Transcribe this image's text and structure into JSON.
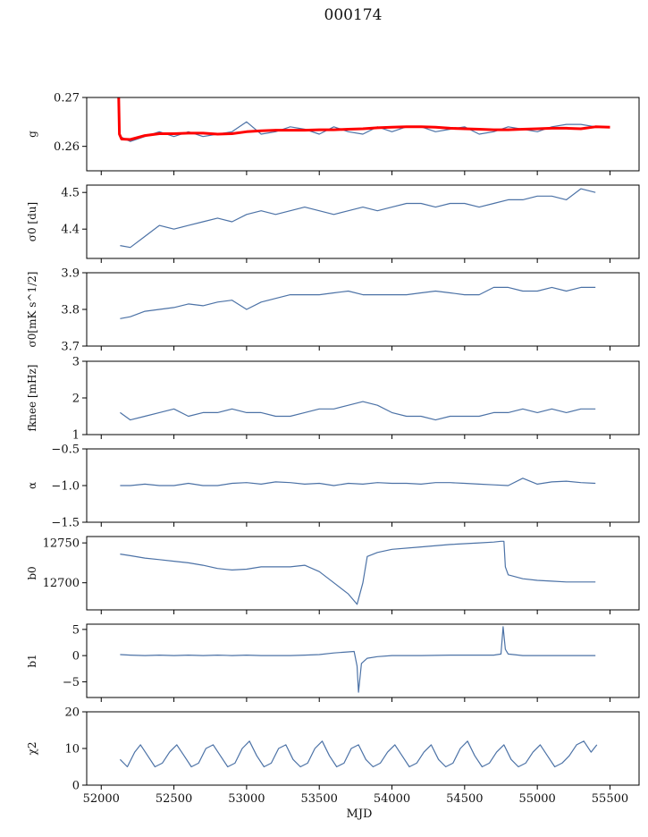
{
  "title": "000174",
  "colors": {
    "series": "#4C72A6",
    "fit": "#FF0000",
    "axis": "#000000"
  },
  "chart_data": [
    {
      "type": "line",
      "ylabel": "g",
      "ylim": [
        0.255,
        0.27
      ],
      "yticks": [
        0.26,
        0.27
      ],
      "ytick_labels": [
        "0.26",
        "0.27"
      ],
      "series": [
        {
          "x": [
            52130,
            52200,
            52300,
            52400,
            52500,
            52600,
            52700,
            52800,
            52900,
            53000,
            53100,
            53200,
            53300,
            53400,
            53500,
            53600,
            53700,
            53800,
            53900,
            54000,
            54100,
            54200,
            54300,
            54400,
            54500,
            54600,
            54700,
            54800,
            54900,
            55000,
            55100,
            55200,
            55300,
            55400
          ],
          "values": [
            0.262,
            0.261,
            0.262,
            0.263,
            0.262,
            0.263,
            0.262,
            0.2625,
            0.263,
            0.265,
            0.2625,
            0.263,
            0.264,
            0.2635,
            0.2625,
            0.264,
            0.263,
            0.2625,
            0.264,
            0.263,
            0.264,
            0.264,
            0.263,
            0.2635,
            0.264,
            0.2625,
            0.263,
            0.264,
            0.2635,
            0.263,
            0.264,
            0.2645,
            0.2645,
            0.264
          ]
        },
        {
          "x": [
            52120,
            52125,
            52140,
            52200,
            52300,
            52400,
            52500,
            52600,
            52700,
            52800,
            52900,
            53000,
            53100,
            53200,
            53300,
            53400,
            53500,
            53600,
            53700,
            53800,
            53900,
            54000,
            54100,
            54200,
            54300,
            54400,
            54500,
            54600,
            54700,
            54800,
            54900,
            55000,
            55100,
            55200,
            55300,
            55400,
            55500
          ],
          "values": [
            0.27,
            0.2625,
            0.2615,
            0.2614,
            0.2622,
            0.2626,
            0.2626,
            0.2627,
            0.2627,
            0.2625,
            0.2626,
            0.263,
            0.2632,
            0.2633,
            0.2633,
            0.2633,
            0.2634,
            0.2634,
            0.2635,
            0.2636,
            0.2638,
            0.2639,
            0.264,
            0.264,
            0.2639,
            0.2637,
            0.2636,
            0.2635,
            0.2634,
            0.2634,
            0.2635,
            0.2636,
            0.2637,
            0.2637,
            0.2636,
            0.264,
            0.2639
          ]
        }
      ]
    },
    {
      "type": "line",
      "ylabel": "σ0 [du]",
      "ylim": [
        4.32,
        4.52
      ],
      "yticks": [
        4.4,
        4.5
      ],
      "ytick_labels": [
        "4.4",
        "4.5"
      ],
      "series": [
        {
          "x": [
            52130,
            52200,
            52300,
            52400,
            52500,
            52600,
            52700,
            52800,
            52900,
            53000,
            53100,
            53200,
            53300,
            53400,
            53500,
            53600,
            53700,
            53800,
            53900,
            54000,
            54100,
            54200,
            54300,
            54400,
            54500,
            54600,
            54700,
            54800,
            54900,
            55000,
            55100,
            55200,
            55300,
            55400
          ],
          "values": [
            4.355,
            4.35,
            4.38,
            4.41,
            4.4,
            4.41,
            4.42,
            4.43,
            4.42,
            4.44,
            4.45,
            4.44,
            4.45,
            4.46,
            4.45,
            4.44,
            4.45,
            4.46,
            4.45,
            4.46,
            4.47,
            4.47,
            4.46,
            4.47,
            4.47,
            4.46,
            4.47,
            4.48,
            4.48,
            4.49,
            4.49,
            4.48,
            4.51,
            4.5
          ]
        }
      ]
    },
    {
      "type": "line",
      "ylabel": "σ0[mK s^1/2]",
      "ylim": [
        3.7,
        3.9
      ],
      "yticks": [
        3.7,
        3.8,
        3.9
      ],
      "ytick_labels": [
        "3.7",
        "3.8",
        "3.9"
      ],
      "series": [
        {
          "x": [
            52130,
            52200,
            52300,
            52400,
            52500,
            52600,
            52700,
            52800,
            52900,
            53000,
            53100,
            53200,
            53300,
            53400,
            53500,
            53600,
            53700,
            53800,
            53900,
            54000,
            54100,
            54200,
            54300,
            54400,
            54500,
            54600,
            54700,
            54800,
            54900,
            55000,
            55100,
            55200,
            55300,
            55400
          ],
          "values": [
            3.775,
            3.78,
            3.795,
            3.8,
            3.805,
            3.815,
            3.81,
            3.82,
            3.825,
            3.8,
            3.82,
            3.83,
            3.84,
            3.84,
            3.84,
            3.845,
            3.85,
            3.84,
            3.84,
            3.84,
            3.84,
            3.845,
            3.85,
            3.845,
            3.84,
            3.84,
            3.86,
            3.86,
            3.85,
            3.85,
            3.86,
            3.85,
            3.86,
            3.86
          ]
        }
      ]
    },
    {
      "type": "line",
      "ylabel": "fknee [mHz]",
      "ylim": [
        1,
        3
      ],
      "yticks": [
        1,
        2,
        3
      ],
      "ytick_labels": [
        "1",
        "2",
        "3"
      ],
      "series": [
        {
          "x": [
            52130,
            52200,
            52300,
            52400,
            52500,
            52600,
            52700,
            52800,
            52900,
            53000,
            53100,
            53200,
            53300,
            53400,
            53500,
            53600,
            53700,
            53800,
            53900,
            54000,
            54100,
            54200,
            54300,
            54400,
            54500,
            54600,
            54700,
            54800,
            54900,
            55000,
            55100,
            55200,
            55300,
            55400
          ],
          "values": [
            1.6,
            1.4,
            1.5,
            1.6,
            1.7,
            1.5,
            1.6,
            1.6,
            1.7,
            1.6,
            1.6,
            1.5,
            1.5,
            1.6,
            1.7,
            1.7,
            1.8,
            1.9,
            1.8,
            1.6,
            1.5,
            1.5,
            1.4,
            1.5,
            1.5,
            1.5,
            1.6,
            1.6,
            1.7,
            1.6,
            1.7,
            1.6,
            1.7,
            1.7
          ]
        }
      ]
    },
    {
      "type": "line",
      "ylabel": "α",
      "ylim": [
        -1.5,
        -0.5
      ],
      "yticks": [
        -1.5,
        -1.0,
        -0.5
      ],
      "ytick_labels": [
        "−1.5",
        "−1.0",
        "−0.5"
      ],
      "series": [
        {
          "x": [
            52130,
            52200,
            52300,
            52400,
            52500,
            52600,
            52700,
            52800,
            52900,
            53000,
            53100,
            53200,
            53300,
            53400,
            53500,
            53600,
            53700,
            53800,
            53900,
            54000,
            54100,
            54200,
            54300,
            54400,
            54500,
            54600,
            54700,
            54800,
            54900,
            55000,
            55100,
            55200,
            55300,
            55400
          ],
          "values": [
            -1.0,
            -1.0,
            -0.98,
            -1.0,
            -1.0,
            -0.97,
            -1.0,
            -1.0,
            -0.97,
            -0.96,
            -0.98,
            -0.95,
            -0.96,
            -0.98,
            -0.97,
            -1.0,
            -0.97,
            -0.98,
            -0.96,
            -0.97,
            -0.97,
            -0.98,
            -0.96,
            -0.96,
            -0.97,
            -0.98,
            -0.99,
            -1.0,
            -0.9,
            -0.98,
            -0.95,
            -0.94,
            -0.96,
            -0.97
          ]
        }
      ]
    },
    {
      "type": "line",
      "ylabel": "b0",
      "ylim": [
        12666,
        12758
      ],
      "yticks": [
        12700,
        12750
      ],
      "ytick_labels": [
        "12700",
        "12750"
      ],
      "series": [
        {
          "x": [
            52130,
            52200,
            52300,
            52400,
            52500,
            52600,
            52700,
            52800,
            52900,
            53000,
            53100,
            53200,
            53300,
            53400,
            53500,
            53600,
            53700,
            53760,
            53800,
            53830,
            53900,
            54000,
            54200,
            54400,
            54600,
            54700,
            54750,
            54770,
            54780,
            54800,
            54900,
            55000,
            55100,
            55200,
            55300,
            55400
          ],
          "values": [
            12736,
            12734,
            12731,
            12729,
            12727,
            12725,
            12722,
            12718,
            12716,
            12717,
            12720,
            12720,
            12720,
            12722,
            12714,
            12700,
            12686,
            12673,
            12700,
            12733,
            12738,
            12742,
            12745,
            12748,
            12750,
            12751,
            12752,
            12752,
            12720,
            12710,
            12705,
            12703,
            12702,
            12701,
            12701,
            12701
          ]
        }
      ]
    },
    {
      "type": "line",
      "ylabel": "b1",
      "ylim": [
        -8,
        6
      ],
      "yticks": [
        -5,
        0,
        5
      ],
      "ytick_labels": [
        "−5",
        "0",
        "5"
      ],
      "series": [
        {
          "x": [
            52130,
            52200,
            52300,
            52400,
            52500,
            52600,
            52700,
            52800,
            52900,
            53000,
            53100,
            53200,
            53300,
            53400,
            53500,
            53600,
            53700,
            53740,
            53760,
            53770,
            53790,
            53830,
            53900,
            54000,
            54200,
            54400,
            54600,
            54700,
            54750,
            54765,
            54780,
            54800,
            54900,
            55000,
            55200,
            55400
          ],
          "values": [
            0.2,
            0.1,
            0.0,
            0.1,
            0.0,
            0.1,
            0.0,
            0.1,
            0.0,
            0.1,
            0.0,
            0.0,
            0.0,
            0.1,
            0.2,
            0.5,
            0.7,
            0.8,
            -2.0,
            -7.0,
            -1.5,
            -0.5,
            -0.2,
            0.0,
            0.0,
            0.1,
            0.1,
            0.1,
            0.3,
            5.5,
            1.2,
            0.3,
            0.0,
            0.0,
            0.0,
            0.0
          ]
        }
      ]
    },
    {
      "type": "line",
      "ylabel": "χ2",
      "xlabel": "MJD",
      "ylim": [
        0,
        20
      ],
      "yticks": [
        0,
        10,
        20
      ],
      "ytick_labels": [
        "0",
        "10",
        "20"
      ],
      "series": [
        {
          "x": [
            52130,
            52180,
            52230,
            52270,
            52320,
            52370,
            52420,
            52470,
            52520,
            52570,
            52620,
            52670,
            52720,
            52770,
            52820,
            52870,
            52920,
            52970,
            53020,
            53070,
            53120,
            53170,
            53220,
            53270,
            53320,
            53370,
            53420,
            53470,
            53520,
            53570,
            53620,
            53670,
            53720,
            53770,
            53820,
            53870,
            53920,
            53970,
            54020,
            54070,
            54120,
            54170,
            54220,
            54270,
            54320,
            54370,
            54420,
            54470,
            54520,
            54570,
            54620,
            54670,
            54720,
            54770,
            54820,
            54870,
            54920,
            54970,
            55020,
            55070,
            55120,
            55170,
            55220,
            55270,
            55320,
            55370,
            55410
          ],
          "values": [
            7,
            5,
            9,
            11,
            8,
            5,
            6,
            9,
            11,
            8,
            5,
            6,
            10,
            11,
            8,
            5,
            6,
            10,
            12,
            8,
            5,
            6,
            10,
            11,
            7,
            5,
            6,
            10,
            12,
            8,
            5,
            6,
            10,
            11,
            7,
            5,
            6,
            9,
            11,
            8,
            5,
            6,
            9,
            11,
            7,
            5,
            6,
            10,
            12,
            8,
            5,
            6,
            9,
            11,
            7,
            5,
            6,
            9,
            11,
            8,
            5,
            6,
            8,
            11,
            12,
            9,
            11
          ]
        }
      ]
    }
  ],
  "x_axis": {
    "xlim": [
      51900,
      55700
    ],
    "ticks": [
      52000,
      52500,
      53000,
      53500,
      54000,
      54500,
      55000,
      55500
    ],
    "tick_labels": [
      "52000",
      "52500",
      "53000",
      "53500",
      "54000",
      "54500",
      "55000",
      "55500"
    ],
    "label": "MJD"
  }
}
